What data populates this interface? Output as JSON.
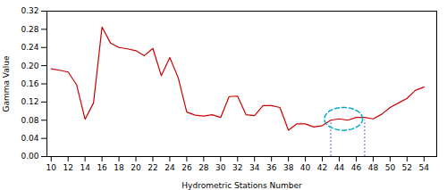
{
  "chart_data": {
    "type": "line",
    "x": [
      10,
      11,
      12,
      13,
      14,
      15,
      16,
      17,
      18,
      19,
      20,
      21,
      22,
      23,
      24,
      25,
      26,
      27,
      28,
      29,
      30,
      31,
      32,
      33,
      34,
      35,
      36,
      37,
      38,
      39,
      40,
      41,
      42,
      43,
      44,
      45,
      46,
      47,
      48,
      49,
      50,
      51,
      52,
      53,
      54
    ],
    "values": [
      0.193,
      0.19,
      0.186,
      0.158,
      0.082,
      0.118,
      0.285,
      0.25,
      0.24,
      0.237,
      0.233,
      0.222,
      0.238,
      0.178,
      0.218,
      0.173,
      0.098,
      0.091,
      0.089,
      0.092,
      0.086,
      0.132,
      0.133,
      0.092,
      0.09,
      0.112,
      0.112,
      0.108,
      0.058,
      0.072,
      0.072,
      0.065,
      0.068,
      0.08,
      0.083,
      0.08,
      0.086,
      0.086,
      0.083,
      0.093,
      0.108,
      0.118,
      0.128,
      0.146,
      0.153
    ],
    "color": "#cc0000",
    "xlabel": "Hydrometric Stations Number",
    "ylabel": "Gamma Value",
    "xlim": [
      9.5,
      55.5
    ],
    "ylim": [
      0.0,
      0.32
    ],
    "xticks": [
      10,
      12,
      14,
      16,
      18,
      20,
      22,
      24,
      26,
      28,
      30,
      32,
      34,
      36,
      38,
      40,
      42,
      44,
      46,
      48,
      50,
      52,
      54
    ],
    "yticks": [
      {
        "value": 0.0,
        "label": "0.00"
      },
      {
        "value": 0.04,
        "label": "0.04"
      },
      {
        "value": 0.08,
        "label": "0.08"
      },
      {
        "value": 0.12,
        "label": "0.12"
      },
      {
        "value": 0.16,
        "label": "0.16"
      },
      {
        "value": 0.2,
        "label": "0.20"
      },
      {
        "value": 0.24,
        "label": "0.24"
      },
      {
        "value": 0.28,
        "label": "0.28"
      },
      {
        "value": 0.32,
        "label": "0.32"
      }
    ],
    "grid": false,
    "vlines": {
      "x": [
        43,
        47
      ],
      "ymax": 0.08,
      "color": "#3333aa",
      "line_style": "dotted"
    },
    "ellipse": {
      "cx": 44.5,
      "cy": 0.083,
      "width": 4.5,
      "height": 0.05,
      "color": "#00aacc",
      "line_style": "dashed"
    }
  }
}
